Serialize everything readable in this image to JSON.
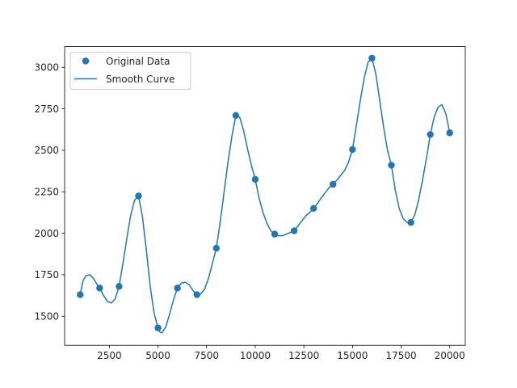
{
  "chart_data": {
    "type": "line",
    "title": "",
    "xlabel": "",
    "ylabel": "",
    "xlim": [
      200,
      20800
    ],
    "ylim": [
      1325,
      3125
    ],
    "xticks": [
      2500,
      5000,
      7500,
      10000,
      12500,
      15000,
      17500,
      20000
    ],
    "yticks": [
      1500,
      1750,
      2000,
      2250,
      2500,
      2750,
      3000
    ],
    "grid": false,
    "legend_position": "top-left",
    "colors": {
      "series": "#1f77b4",
      "axis": "#000000",
      "text": "#262626"
    },
    "series": [
      {
        "name": "Original Data",
        "kind": "scatter",
        "x": [
          1000,
          2000,
          3000,
          4000,
          5000,
          6000,
          7000,
          8000,
          9000,
          10000,
          11000,
          12000,
          13000,
          14000,
          15000,
          16000,
          17000,
          18000,
          19000,
          20000
        ],
        "y": [
          1630,
          1670,
          1680,
          2225,
          1430,
          1670,
          1630,
          1910,
          2710,
          2325,
          1995,
          2015,
          2150,
          2295,
          2505,
          3055,
          2410,
          2065,
          2595,
          2605
        ]
      },
      {
        "name": "Smooth Curve",
        "kind": "line",
        "x": [
          1000,
          1150,
          1300,
          1500,
          1700,
          1900,
          2000,
          2200,
          2400,
          2600,
          2800,
          3000,
          3200,
          3400,
          3600,
          3800,
          4000,
          4200,
          4400,
          4600,
          4800,
          5000,
          5100,
          5200,
          5400,
          5600,
          5800,
          6000,
          6200,
          6400,
          6600,
          6800,
          7000,
          7200,
          7400,
          7600,
          7800,
          8000,
          8200,
          8400,
          8600,
          8800,
          9000,
          9200,
          9400,
          9600,
          9800,
          10000,
          10200,
          10400,
          10600,
          10800,
          11000,
          11200,
          11400,
          11600,
          11800,
          12000,
          12200,
          12400,
          12600,
          12800,
          13000,
          13200,
          13400,
          13600,
          13800,
          14000,
          14200,
          14400,
          14600,
          14800,
          15000,
          15200,
          15400,
          15600,
          15800,
          16000,
          16200,
          16400,
          16600,
          16800,
          17000,
          17200,
          17400,
          17600,
          17800,
          18000,
          18200,
          18400,
          18600,
          18800,
          19000,
          19200,
          19400,
          19600,
          19800,
          20000
        ],
        "y": [
          1630,
          1715,
          1745,
          1750,
          1725,
          1685,
          1670,
          1625,
          1590,
          1580,
          1605,
          1680,
          1820,
          1970,
          2110,
          2200,
          2225,
          2100,
          1900,
          1680,
          1520,
          1430,
          1405,
          1400,
          1435,
          1515,
          1600,
          1670,
          1700,
          1705,
          1690,
          1655,
          1630,
          1635,
          1665,
          1730,
          1820,
          1910,
          2070,
          2250,
          2430,
          2585,
          2710,
          2700,
          2620,
          2510,
          2410,
          2325,
          2210,
          2125,
          2060,
          2015,
          1995,
          1985,
          1985,
          1995,
          2005,
          2015,
          2045,
          2075,
          2105,
          2125,
          2150,
          2180,
          2215,
          2245,
          2275,
          2295,
          2320,
          2350,
          2380,
          2430,
          2505,
          2650,
          2800,
          2935,
          3030,
          3055,
          2960,
          2800,
          2640,
          2500,
          2410,
          2260,
          2150,
          2090,
          2065,
          2065,
          2110,
          2200,
          2320,
          2450,
          2595,
          2700,
          2760,
          2775,
          2720,
          2605
        ]
      }
    ]
  }
}
